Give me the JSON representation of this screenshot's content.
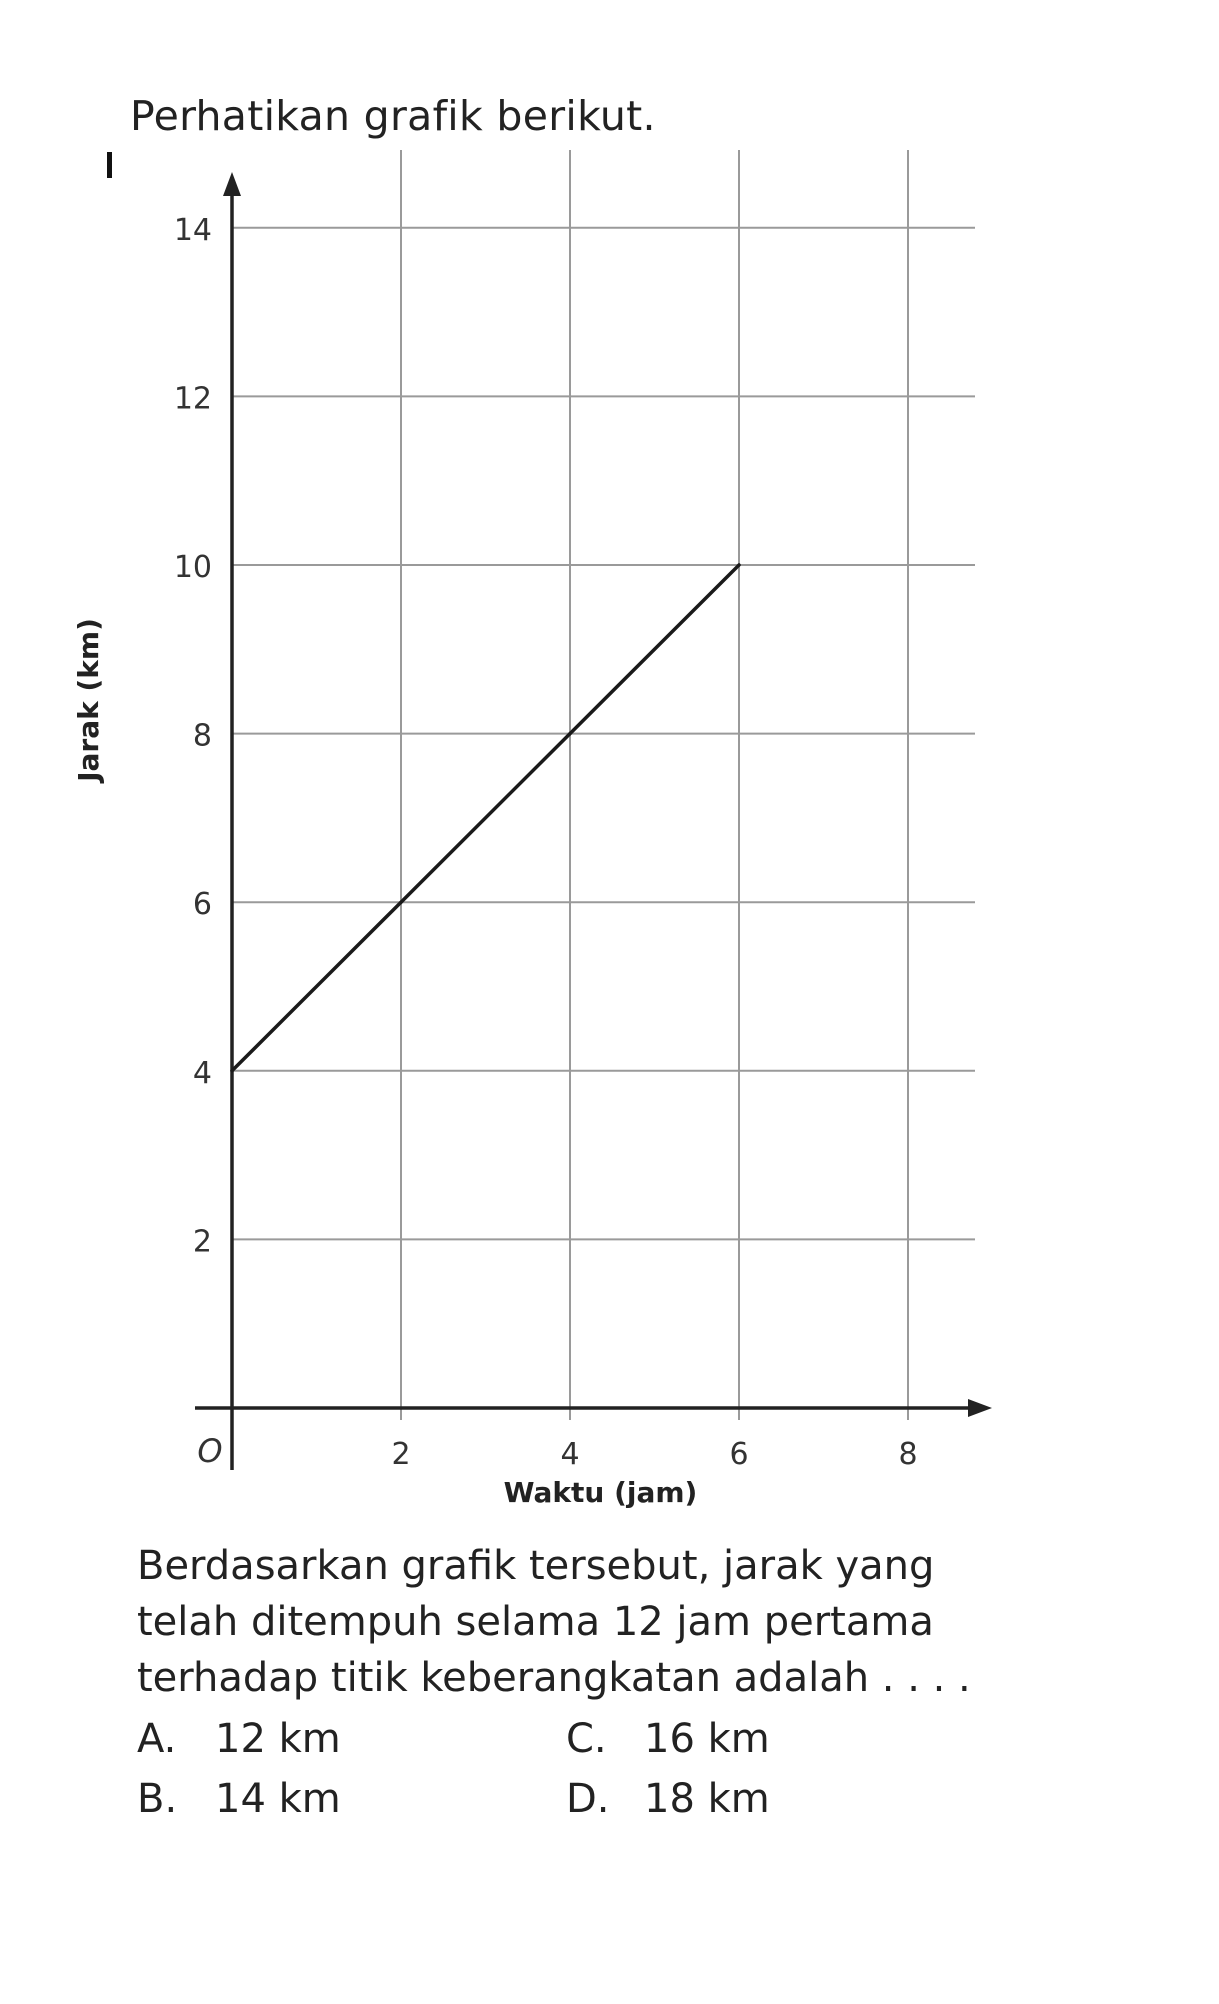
{
  "intro": "Perhatikan grafik berikut.",
  "chart_data": {
    "type": "line",
    "xlabel": "Waktu (jam)",
    "ylabel": "Jarak (km)",
    "origin_label": "O",
    "x_ticks": [
      "2",
      "4",
      "6",
      "8"
    ],
    "y_ticks": [
      "2",
      "4",
      "6",
      "8",
      "10",
      "12",
      "14"
    ],
    "xlim": [
      0,
      8
    ],
    "ylim": [
      0,
      14
    ],
    "grid": true,
    "series": [
      {
        "x": [
          0,
          2,
          4,
          6
        ],
        "y": [
          4,
          6,
          8,
          10
        ]
      }
    ]
  },
  "question": {
    "lines": [
      "Berdasarkan grafik tersebut, jarak yang",
      "telah ditempuh selama 12 jam pertama",
      "terhadap titik keberangkatan adalah . . . ."
    ]
  },
  "options": [
    {
      "letter": "A.",
      "text": "12 km"
    },
    {
      "letter": "B.",
      "text": "14 km"
    },
    {
      "letter": "C.",
      "text": "16 km"
    },
    {
      "letter": "D.",
      "text": "18 km"
    }
  ]
}
